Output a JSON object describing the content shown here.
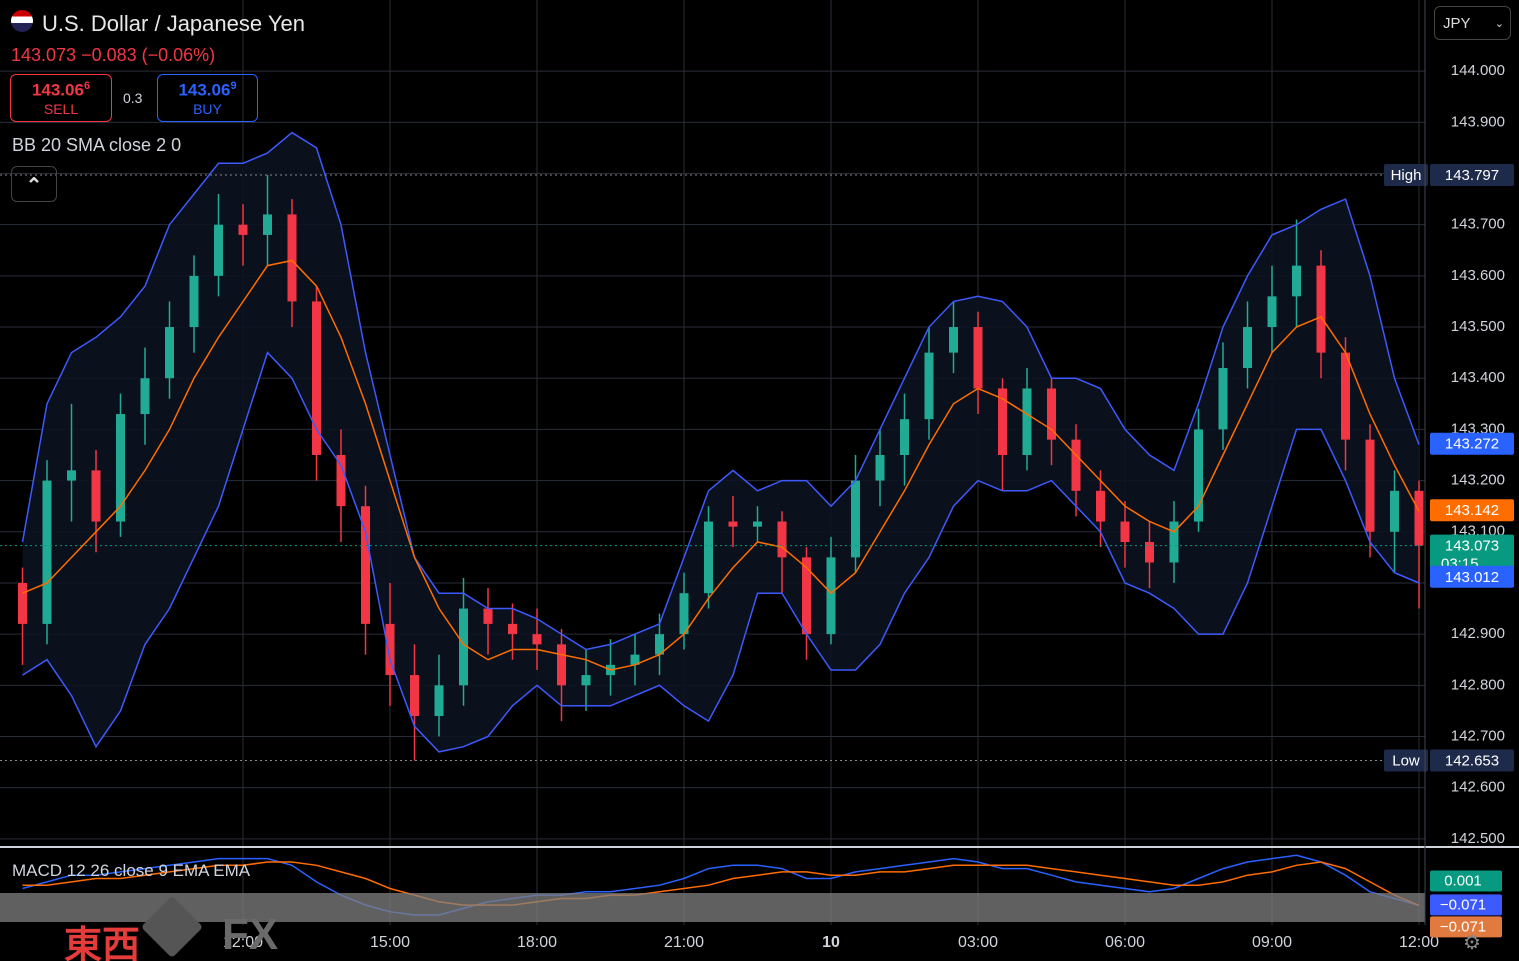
{
  "ui": {
    "symbol": "U.S. Dollar / Japanese Yen",
    "change_line": "143.073 −0.083 (−0.06%)",
    "sell_price": "143.06",
    "sell_pip": "6",
    "sell_label": "SELL",
    "spread": "0.3",
    "buy_price": "143.06",
    "buy_pip": "9",
    "buy_label": "BUY",
    "bb_legend": "BB 20 SMA close 2 0",
    "macd_legend": "MACD 12 26 close 9 EMA EMA",
    "currency": "JPY",
    "watermark": [
      "東西",
      "FX"
    ]
  },
  "chart_data": [
    {
      "type": "candlestick",
      "categories": [
        null,
        null,
        null,
        null,
        null,
        null,
        null,
        null,
        null,
        "12:00",
        null,
        null,
        null,
        null,
        null,
        "15:00",
        null,
        null,
        null,
        null,
        null,
        "18:00",
        null,
        null,
        null,
        null,
        null,
        "21:00",
        null,
        null,
        null,
        null,
        null,
        "10",
        null,
        null,
        null,
        null,
        null,
        "03:00",
        null,
        null,
        null,
        null,
        null,
        "06:00",
        null,
        null,
        null,
        null,
        null,
        "09:00",
        null,
        null,
        null,
        null,
        null,
        "12:00"
      ],
      "open": [
        143.0,
        142.92,
        143.2,
        143.22,
        143.12,
        143.33,
        143.4,
        143.5,
        143.6,
        143.7,
        143.68,
        143.72,
        143.55,
        143.25,
        143.15,
        142.92,
        142.82,
        142.74,
        142.8,
        142.95,
        142.92,
        142.9,
        142.88,
        142.8,
        142.82,
        142.84,
        142.86,
        142.9,
        142.98,
        143.12,
        143.11,
        143.12,
        143.05,
        142.9,
        143.05,
        143.2,
        143.25,
        143.32,
        143.45,
        143.5,
        143.38,
        143.25,
        143.38,
        143.28,
        143.18,
        143.12,
        143.08,
        143.04,
        143.12,
        143.3,
        143.42,
        143.5,
        143.56,
        143.62,
        143.45,
        143.28,
        143.1,
        143.18
      ],
      "high": [
        143.03,
        143.24,
        143.35,
        143.26,
        143.37,
        143.46,
        143.55,
        143.64,
        143.76,
        143.74,
        143.797,
        143.75,
        143.58,
        143.3,
        143.19,
        143.0,
        142.88,
        142.86,
        143.01,
        142.99,
        142.96,
        142.95,
        142.91,
        142.87,
        142.89,
        142.9,
        142.94,
        143.02,
        143.15,
        143.17,
        143.15,
        143.14,
        143.07,
        143.09,
        143.25,
        143.3,
        143.37,
        143.5,
        143.55,
        143.53,
        143.4,
        143.42,
        143.4,
        143.31,
        143.22,
        143.16,
        143.12,
        143.16,
        143.34,
        143.47,
        143.55,
        143.62,
        143.71,
        143.65,
        143.48,
        143.31,
        143.22,
        143.2
      ],
      "low": [
        142.84,
        142.88,
        143.12,
        143.06,
        143.09,
        143.27,
        143.36,
        143.45,
        143.56,
        143.62,
        143.62,
        143.5,
        143.2,
        143.08,
        142.86,
        142.76,
        142.653,
        142.7,
        142.76,
        142.86,
        142.85,
        142.83,
        142.73,
        142.75,
        142.78,
        142.8,
        142.82,
        142.87,
        142.95,
        143.07,
        143.08,
        142.98,
        142.85,
        142.88,
        143.02,
        143.15,
        143.19,
        143.28,
        143.41,
        143.33,
        143.18,
        143.22,
        143.23,
        143.13,
        143.07,
        143.03,
        142.99,
        143.0,
        143.1,
        143.26,
        143.38,
        143.45,
        143.5,
        143.4,
        143.22,
        143.05,
        143.02,
        142.95
      ],
      "close": [
        142.92,
        143.2,
        143.22,
        143.12,
        143.33,
        143.4,
        143.5,
        143.6,
        143.7,
        143.68,
        143.72,
        143.55,
        143.25,
        143.15,
        142.92,
        142.82,
        142.74,
        142.8,
        142.95,
        142.92,
        142.9,
        142.88,
        142.8,
        142.82,
        142.84,
        142.86,
        142.9,
        142.98,
        143.12,
        143.11,
        143.12,
        143.05,
        142.9,
        143.05,
        143.2,
        143.25,
        143.32,
        143.45,
        143.5,
        143.38,
        143.25,
        143.38,
        143.28,
        143.18,
        143.12,
        143.08,
        143.04,
        143.12,
        143.3,
        143.42,
        143.5,
        143.56,
        143.62,
        143.45,
        143.28,
        143.1,
        143.18,
        143.073
      ],
      "up_color": "#22ab94",
      "down_color": "#f23645",
      "series": [
        {
          "name": "upper",
          "color": "#3d5afe",
          "values": [
            143.08,
            143.35,
            143.45,
            143.48,
            143.52,
            143.58,
            143.7,
            143.76,
            143.82,
            143.82,
            143.84,
            143.88,
            143.85,
            143.7,
            143.45,
            143.25,
            143.05,
            142.98,
            142.98,
            142.95,
            142.95,
            142.93,
            142.9,
            142.87,
            142.88,
            142.9,
            142.92,
            143.05,
            143.18,
            143.22,
            143.18,
            143.2,
            143.2,
            143.15,
            143.2,
            143.3,
            143.4,
            143.5,
            143.55,
            143.56,
            143.55,
            143.5,
            143.4,
            143.4,
            143.38,
            143.3,
            143.25,
            143.22,
            143.35,
            143.5,
            143.6,
            143.68,
            143.7,
            143.73,
            143.75,
            143.6,
            143.4,
            143.27
          ]
        },
        {
          "name": "basis",
          "color": "#ff6d00",
          "values": [
            142.98,
            143.0,
            143.05,
            143.1,
            143.15,
            143.22,
            143.3,
            143.4,
            143.48,
            143.55,
            143.62,
            143.63,
            143.58,
            143.48,
            143.35,
            143.2,
            143.05,
            142.95,
            142.88,
            142.85,
            142.87,
            142.87,
            142.86,
            142.85,
            142.83,
            142.84,
            142.86,
            142.9,
            142.97,
            143.03,
            143.08,
            143.07,
            143.03,
            142.98,
            143.02,
            143.1,
            143.18,
            143.27,
            143.35,
            143.38,
            143.36,
            143.33,
            143.3,
            143.25,
            143.2,
            143.15,
            143.12,
            143.1,
            143.15,
            143.25,
            143.35,
            143.45,
            143.5,
            143.52,
            143.45,
            143.33,
            143.23,
            143.14
          ]
        },
        {
          "name": "lower",
          "color": "#3d5afe",
          "values": [
            142.82,
            142.85,
            142.78,
            142.68,
            142.75,
            142.88,
            142.95,
            143.05,
            143.15,
            143.3,
            143.45,
            143.4,
            143.3,
            143.23,
            143.1,
            142.85,
            142.72,
            142.67,
            142.68,
            142.7,
            142.76,
            142.8,
            142.76,
            142.76,
            142.76,
            142.78,
            142.8,
            142.76,
            142.73,
            142.82,
            142.98,
            142.98,
            142.9,
            142.83,
            142.83,
            142.88,
            142.98,
            143.05,
            143.15,
            143.2,
            143.18,
            143.18,
            143.2,
            143.15,
            143.1,
            143.0,
            142.98,
            142.95,
            142.9,
            142.9,
            143.0,
            143.15,
            143.3,
            143.3,
            143.2,
            143.08,
            143.02,
            143.0
          ]
        }
      ],
      "ylim": [
        142.488,
        144.139
      ],
      "yticks": [
        {
          "value": 142.5,
          "label": "142.500"
        },
        {
          "value": 142.6,
          "label": "142.600"
        },
        {
          "value": 142.7,
          "label": "142.700"
        },
        {
          "value": 142.8,
          "label": "142.800"
        },
        {
          "value": 142.9,
          "label": "142.900"
        },
        {
          "value": 143.0,
          "label": "143.000"
        },
        {
          "value": 143.1,
          "label": "143.100"
        },
        {
          "value": 143.2,
          "label": "143.200"
        },
        {
          "value": 143.3,
          "label": "143.300"
        },
        {
          "value": 143.4,
          "label": "143.400"
        },
        {
          "value": 143.5,
          "label": "143.500"
        },
        {
          "value": 143.6,
          "label": "143.600"
        },
        {
          "value": 143.7,
          "label": "143.700"
        },
        {
          "value": 143.8,
          "label": "143.800"
        },
        {
          "value": 143.9,
          "label": "143.900"
        },
        {
          "value": 144.0,
          "label": "144.000"
        }
      ],
      "grid": true,
      "tags": [
        {
          "name": "High",
          "value": 143.797,
          "label": "143.797",
          "color": "#1e2a4a",
          "line": "#888888"
        },
        {
          "name": "Low",
          "value": 142.653,
          "label": "142.653",
          "color": "#1e2a4a",
          "line": "#888888"
        },
        {
          "value": 143.272,
          "label": "143.272",
          "color": "#2962ff"
        },
        {
          "value": 143.142,
          "label": "143.142",
          "color": "#ff6d00"
        },
        {
          "value": 143.073,
          "label": "143.073",
          "sub": "03:15",
          "color": "#089981",
          "line": "#089981"
        },
        {
          "value": 143.012,
          "label": "143.012",
          "color": "#2962ff"
        }
      ]
    },
    {
      "type": "macd",
      "series": [
        {
          "name": "MACD",
          "color": "#2962ff",
          "values": [
            -0.02,
            0.0,
            0.02,
            0.02,
            0.03,
            0.04,
            0.05,
            0.06,
            0.07,
            0.07,
            0.07,
            0.05,
            0.0,
            -0.04,
            -0.07,
            -0.09,
            -0.1,
            -0.1,
            -0.08,
            -0.06,
            -0.05,
            -0.04,
            -0.04,
            -0.03,
            -0.03,
            -0.02,
            -0.01,
            0.01,
            0.04,
            0.05,
            0.05,
            0.04,
            0.01,
            0.01,
            0.03,
            0.04,
            0.05,
            0.06,
            0.07,
            0.06,
            0.04,
            0.04,
            0.02,
            0.0,
            -0.01,
            -0.02,
            -0.03,
            -0.02,
            0.01,
            0.04,
            0.06,
            0.07,
            0.08,
            0.06,
            0.02,
            -0.03,
            -0.05,
            -0.071
          ]
        },
        {
          "name": "Signal",
          "color": "#ff6d00",
          "values": [
            -0.01,
            -0.01,
            0.0,
            0.01,
            0.01,
            0.02,
            0.03,
            0.04,
            0.05,
            0.05,
            0.06,
            0.06,
            0.05,
            0.03,
            0.01,
            -0.02,
            -0.04,
            -0.06,
            -0.07,
            -0.07,
            -0.07,
            -0.06,
            -0.05,
            -0.05,
            -0.04,
            -0.04,
            -0.03,
            -0.02,
            -0.01,
            0.01,
            0.02,
            0.03,
            0.03,
            0.02,
            0.02,
            0.03,
            0.03,
            0.04,
            0.05,
            0.05,
            0.05,
            0.05,
            0.04,
            0.03,
            0.02,
            0.01,
            0.0,
            -0.01,
            -0.01,
            0.0,
            0.02,
            0.03,
            0.05,
            0.06,
            0.04,
            0.0,
            -0.04,
            -0.071
          ]
        }
      ],
      "ylim": [
        -0.13,
        0.09
      ],
      "tags": [
        {
          "value": 0.001,
          "label": "0.001",
          "color": "#089981"
        },
        {
          "value": -0.071,
          "label": "−0.071",
          "color": "#3d5afe"
        },
        {
          "value": -0.071,
          "label": "−0.071",
          "color": "#e07a3f"
        }
      ]
    }
  ]
}
